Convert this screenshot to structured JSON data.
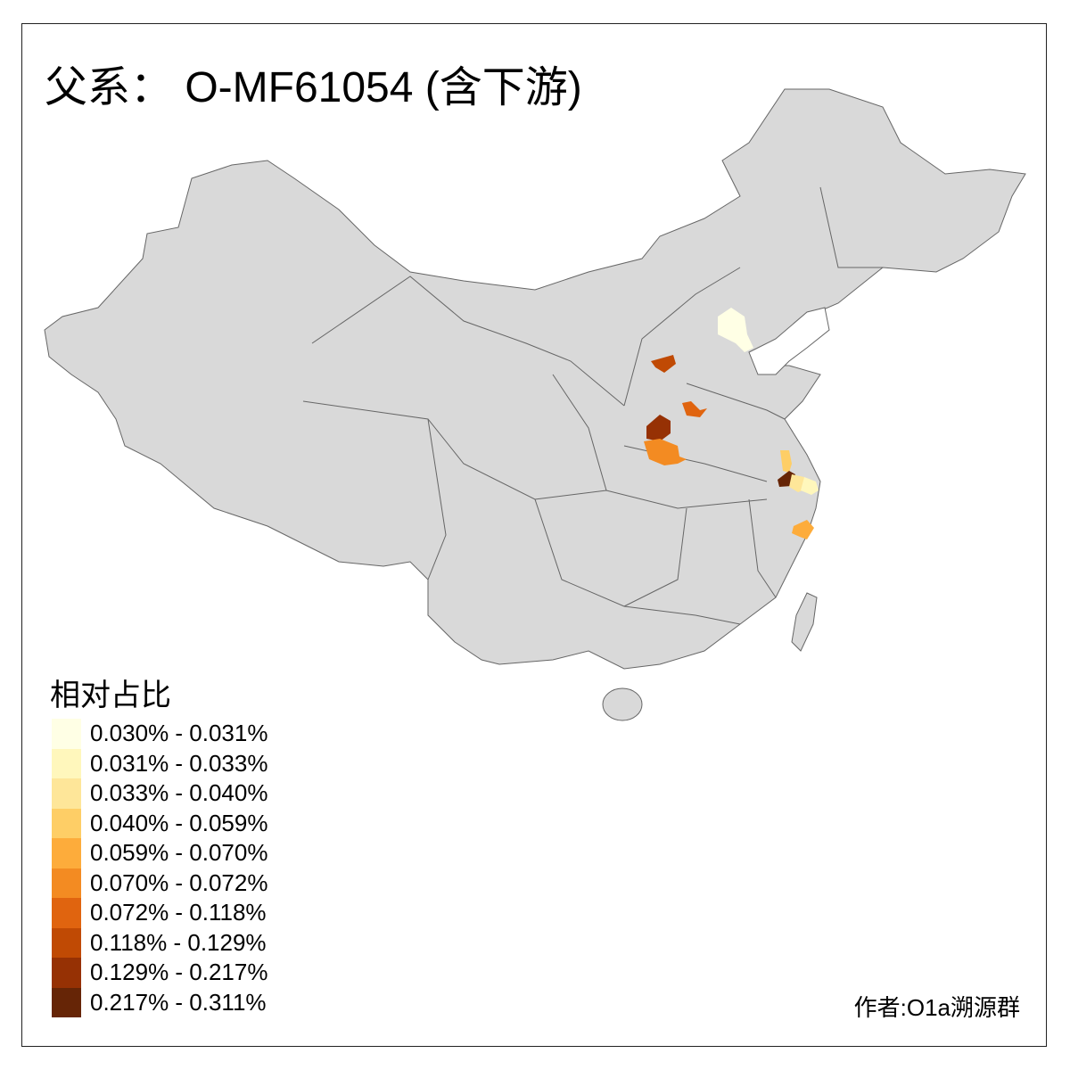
{
  "title": "父系： O-MF61054 (含下游)",
  "legend": {
    "title": "相对占比",
    "items": [
      {
        "label": "0.030% - 0.031%",
        "color": "#FFFFE5"
      },
      {
        "label": "0.031% - 0.033%",
        "color": "#FFF7BC"
      },
      {
        "label": "0.033% - 0.040%",
        "color": "#FEE699"
      },
      {
        "label": "0.040% - 0.059%",
        "color": "#FECE66"
      },
      {
        "label": "0.059% - 0.070%",
        "color": "#FDAC3B"
      },
      {
        "label": "0.070% - 0.072%",
        "color": "#F38B22"
      },
      {
        "label": "0.072% - 0.118%",
        "color": "#E0640F"
      },
      {
        "label": "0.118% - 0.129%",
        "color": "#C04A04"
      },
      {
        "label": "0.129% - 0.217%",
        "color": "#963104"
      },
      {
        "label": "0.217% - 0.311%",
        "color": "#662506"
      }
    ]
  },
  "credit": "作者:O1a溯源群",
  "colors": {
    "land": "#D9D9D9",
    "border": "#666666",
    "sea": "#FFFFFF"
  }
}
